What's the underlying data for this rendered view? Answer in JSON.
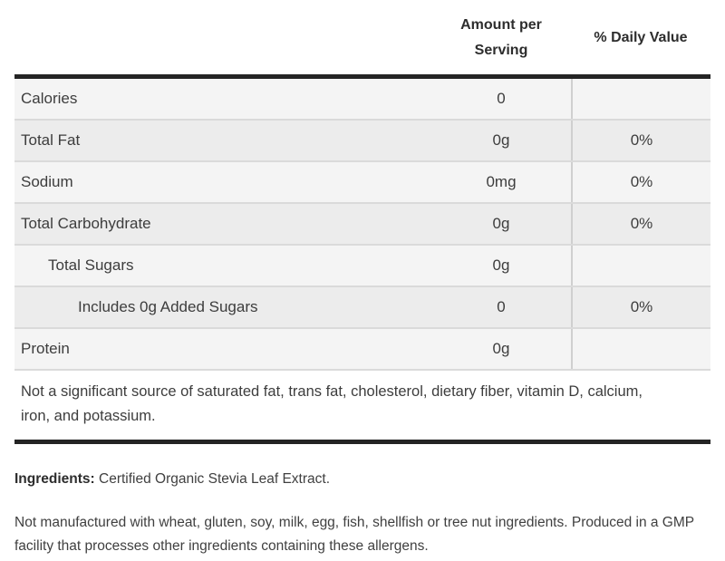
{
  "header": {
    "amount_label": "Amount per Serving",
    "daily_value_label": "% Daily Value"
  },
  "table": {
    "rows": [
      {
        "label": "Calories",
        "amount": "0",
        "daily_value": "",
        "indent": 0
      },
      {
        "label": "Total Fat",
        "amount": "0g",
        "daily_value": "0%",
        "indent": 0
      },
      {
        "label": "Sodium",
        "amount": "0mg",
        "daily_value": "0%",
        "indent": 0
      },
      {
        "label": "Total Carbohydrate",
        "amount": "0g",
        "daily_value": "0%",
        "indent": 0
      },
      {
        "label": "Total Sugars",
        "amount": "0g",
        "daily_value": "",
        "indent": 1
      },
      {
        "label": "Includes 0g Added Sugars",
        "amount": "0",
        "daily_value": "0%",
        "indent": 2
      },
      {
        "label": "Protein",
        "amount": "0g",
        "daily_value": "",
        "indent": 0
      }
    ],
    "footnote": "Not a significant source of saturated fat, trans fat, cholesterol, dietary fiber, vitamin D, calcium, iron, and potassium."
  },
  "ingredients": {
    "label": "Ingredients:",
    "text": " Certified Organic Stevia Leaf Extract."
  },
  "allergen_note": "Not manufactured with wheat, gluten, soy, milk, egg, fish, shellfish or tree nut ingredients. Produced in a GMP facility that processes other ingredients containing these allergens.",
  "colors": {
    "border_thick": "#242424",
    "row_light": "#f4f4f4",
    "row_dark": "#ececec",
    "row_separator": "#dadada",
    "column_divider": "#cfcfcf",
    "text": "#3d3d3d"
  }
}
